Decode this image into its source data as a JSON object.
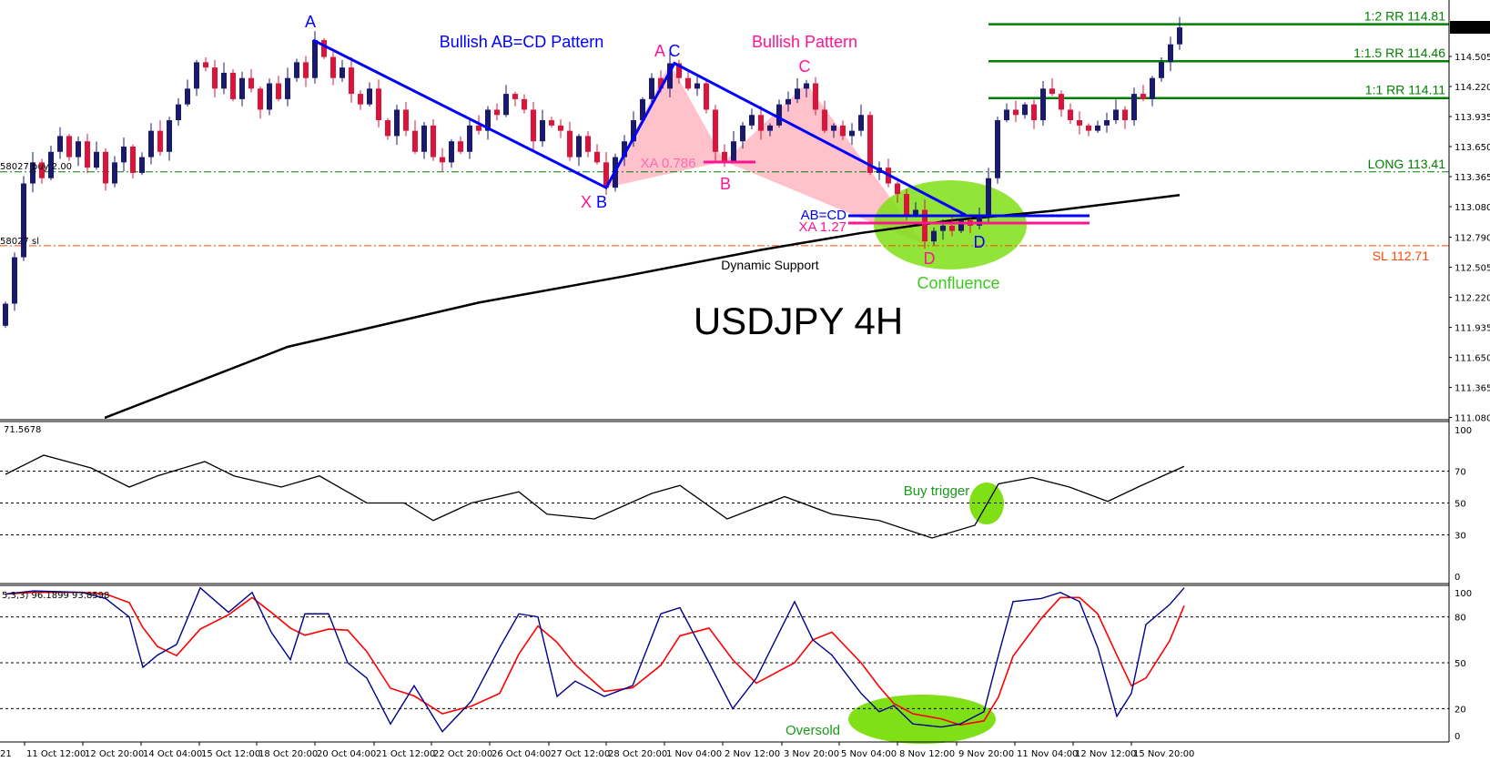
{
  "chart_data": {
    "type": "candlestick",
    "title": "USDJPY 4H",
    "price_axis": {
      "ticks": [
        "114.505",
        "114.220",
        "113.935",
        "113.650",
        "113.365",
        "113.080",
        "112.790",
        "112.505",
        "112.220",
        "111.935",
        "111.650",
        "111.365",
        "111.080"
      ],
      "current_price": "114.782",
      "ylim": [
        111.05,
        114.95
      ]
    },
    "time_axis": {
      "ticks": [
        "21",
        "11 Oct 12:00",
        "12 Oct 20:00",
        "14 Oct 04:00",
        "15 Oct 12:00",
        "18 Oct 20:00",
        "20 Oct 04:00",
        "21 Oct 12:00",
        "22 Oct 20:00",
        "26 Oct 04:00",
        "27 Oct 12:00",
        "28 Oct 20:00",
        "1 Nov 04:00",
        "2 Nov 12:00",
        "3 Nov 20:00",
        "5 Nov 04:00",
        "8 Nov 12:00",
        "9 Nov 20:00",
        "11 Nov 04:00",
        "12 Nov 12:00",
        "15 Nov 20:00"
      ]
    },
    "closes": [
      112.16,
      112.6,
      113.3,
      113.5,
      113.35,
      113.6,
      113.75,
      113.55,
      113.7,
      113.45,
      113.6,
      113.3,
      113.5,
      113.65,
      113.4,
      113.55,
      113.8,
      113.6,
      113.9,
      114.05,
      114.2,
      114.45,
      114.4,
      114.2,
      114.35,
      114.1,
      114.3,
      114.2,
      114.0,
      114.25,
      114.1,
      114.3,
      114.45,
      114.3,
      114.66,
      114.5,
      114.3,
      114.4,
      114.15,
      114.05,
      114.2,
      113.9,
      113.75,
      114.0,
      113.8,
      113.6,
      113.85,
      113.55,
      113.5,
      113.7,
      113.6,
      113.85,
      113.8,
      114.0,
      113.95,
      114.15,
      114.1,
      114.0,
      113.7,
      113.9,
      113.85,
      113.8,
      113.55,
      113.75,
      113.6,
      113.5,
      113.26,
      113.55,
      113.7,
      113.9,
      114.1,
      114.3,
      114.2,
      114.44,
      114.3,
      114.2,
      114.25,
      114.0,
      113.6,
      113.51,
      113.7,
      113.85,
      113.95,
      113.8,
      113.85,
      114.05,
      114.1,
      114.2,
      114.25,
      114.0,
      113.8,
      113.85,
      113.75,
      113.8,
      113.95,
      113.4,
      113.45,
      113.3,
      113.2,
      113.0,
      113.05,
      112.75,
      112.85,
      112.9,
      112.85,
      112.95,
      112.9,
      113.0,
      113.35,
      113.9,
      114.0,
      113.95,
      114.05,
      113.9,
      114.2,
      114.15,
      114.0,
      113.9,
      113.85,
      113.8,
      113.85,
      113.9,
      114.0,
      113.9,
      114.15,
      114.1,
      114.3,
      114.45,
      114.62,
      114.78
    ],
    "moving_average": [
      [
        11,
        111.08
      ],
      [
        31,
        111.75
      ],
      [
        52,
        112.17
      ],
      [
        68,
        112.42
      ],
      [
        83,
        112.67
      ],
      [
        94,
        112.83
      ],
      [
        104,
        112.95
      ],
      [
        115,
        113.04
      ],
      [
        129,
        113.19
      ]
    ],
    "levels": [
      {
        "label": "1:2 RR 114.81",
        "price": 114.81,
        "color": "#008000",
        "style": "solid"
      },
      {
        "label": "1:1.5 RR 114.46",
        "price": 114.46,
        "color": "#008000",
        "style": "solid"
      },
      {
        "label": "1:1 RR 114.11",
        "price": 114.11,
        "color": "#008000",
        "style": "solid"
      },
      {
        "label": "LONG 113.41",
        "price": 113.41,
        "color": "#008000",
        "style": "dashdot"
      },
      {
        "label": "SL 112.71",
        "price": 112.71,
        "color": "#ff4500",
        "style": "dashdot"
      }
    ],
    "order_labels": {
      "buy": "58027 buy 2.00",
      "sl": "58027 sl"
    },
    "annotations": {
      "abcd_title": "Bullish AB=CD Pattern",
      "harmonic_title": "Bullish Pattern",
      "A_blue": "A",
      "C_blue": "C",
      "B_blue": "B",
      "D_blue": "D",
      "A_pink": "A",
      "X_pink": "X",
      "B_pink": "B",
      "C_pink": "C",
      "D_pink": "D",
      "xa786": "XA 0.786",
      "abcd": "AB=CD",
      "xa127": "XA 1.27",
      "dynamic_support": "Dynamic Support",
      "confluence": "Confluence",
      "buy_trigger": "Buy trigger",
      "oversold": "Oversold"
    },
    "colors": {
      "bull": "#191970",
      "bear": "#dc143c",
      "pattern_blue": "#0000ff",
      "pattern_pink": "#ff1493",
      "pink_fill": "#ffb6c1",
      "highlight": "#7fe015",
      "level_green": "#008000",
      "sl": "#ff4500"
    },
    "rsi": {
      "label": "71.5678",
      "levels": [
        70,
        50,
        30
      ],
      "ticks": [
        "100",
        "70",
        "50",
        "30",
        "0"
      ],
      "points": [
        [
          0,
          68
        ],
        [
          4.2,
          80
        ],
        [
          9.4,
          72
        ],
        [
          13.6,
          60
        ],
        [
          16.7,
          67
        ],
        [
          21.9,
          76
        ],
        [
          25.1,
          67
        ],
        [
          30.3,
          60
        ],
        [
          34.5,
          67
        ],
        [
          39.7,
          50
        ],
        [
          43.8,
          50
        ],
        [
          47,
          39
        ],
        [
          51.2,
          50
        ],
        [
          56.4,
          57
        ],
        [
          59.5,
          43
        ],
        [
          64.7,
          40
        ],
        [
          71,
          56
        ],
        [
          74.1,
          61
        ],
        [
          79.3,
          40
        ],
        [
          85.6,
          54
        ],
        [
          90.8,
          43
        ],
        [
          96,
          39
        ],
        [
          101.8,
          28
        ],
        [
          106.5,
          36
        ],
        [
          109.1,
          62
        ],
        [
          112.8,
          66
        ],
        [
          116.9,
          60
        ],
        [
          121.1,
          51
        ],
        [
          124.8,
          61
        ],
        [
          129.5,
          73
        ]
      ]
    },
    "stochastic": {
      "label": "5,3,3) 96.1899 93.8598",
      "levels": [
        80,
        50,
        20
      ],
      "ticks": [
        "100",
        "80",
        "50",
        "20",
        "0"
      ],
      "main": [
        [
          0,
          95
        ],
        [
          3.1,
          97
        ],
        [
          8.4,
          96
        ],
        [
          11,
          92
        ],
        [
          13.6,
          80
        ],
        [
          15.1,
          47
        ],
        [
          16.7,
          55
        ],
        [
          18.8,
          62
        ],
        [
          21.4,
          99
        ],
        [
          24.5,
          83
        ],
        [
          27.1,
          96
        ],
        [
          29.2,
          70
        ],
        [
          31.3,
          52
        ],
        [
          32.9,
          82
        ],
        [
          35.5,
          82
        ],
        [
          37.6,
          50
        ],
        [
          39.7,
          40
        ],
        [
          42.3,
          10
        ],
        [
          44.9,
          35
        ],
        [
          48,
          5
        ],
        [
          51.2,
          25
        ],
        [
          54.3,
          60
        ],
        [
          56.4,
          82
        ],
        [
          58.5,
          80
        ],
        [
          60.6,
          28
        ],
        [
          62.6,
          38
        ],
        [
          65.8,
          28
        ],
        [
          68.9,
          35
        ],
        [
          72,
          82
        ],
        [
          74.1,
          86
        ],
        [
          77.3,
          50
        ],
        [
          79.9,
          20
        ],
        [
          82.5,
          40
        ],
        [
          86.7,
          90
        ],
        [
          88.7,
          65
        ],
        [
          90.8,
          55
        ],
        [
          94,
          30
        ],
        [
          96,
          18
        ],
        [
          97.6,
          22
        ],
        [
          99.7,
          10
        ],
        [
          102.8,
          8
        ],
        [
          104.9,
          10
        ],
        [
          107.5,
          18
        ],
        [
          109.1,
          55
        ],
        [
          110.7,
          90
        ],
        [
          113.8,
          92
        ],
        [
          115.9,
          96
        ],
        [
          118,
          90
        ],
        [
          120,
          60
        ],
        [
          122.1,
          15
        ],
        [
          123.7,
          30
        ],
        [
          125.3,
          75
        ],
        [
          127.9,
          88
        ],
        [
          129.5,
          99
        ]
      ]
    }
  }
}
